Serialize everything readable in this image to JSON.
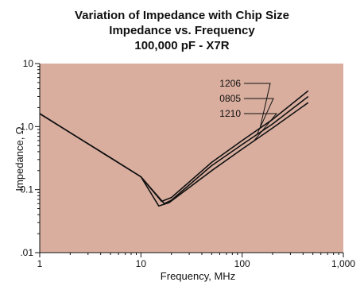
{
  "chart_data": {
    "type": "line",
    "title": [
      "Variation of Impedance with Chip Size",
      "Impedance vs. Frequency",
      "100,000 pF - X7R"
    ],
    "xlabel": "Frequency, MHz",
    "ylabel": "Impedance, Ω",
    "x_scale": "log",
    "y_scale": "log",
    "xlim": [
      1,
      1000
    ],
    "ylim": [
      0.01,
      10
    ],
    "x_ticks": [
      {
        "value": 1,
        "label": "1"
      },
      {
        "value": 10,
        "label": "10"
      },
      {
        "value": 100,
        "label": "100"
      },
      {
        "value": 1000,
        "label": "1,000"
      }
    ],
    "y_ticks": [
      {
        "value": 10,
        "label": "10"
      },
      {
        "value": 1,
        "label": "1.0"
      },
      {
        "value": 0.1,
        "label": "0.1"
      },
      {
        "value": 0.01,
        "label": ".01"
      }
    ],
    "plot_background": "#d9ae9f",
    "line_color": "#111111",
    "legend_placement": "top-right",
    "series": [
      {
        "name": "1206",
        "x": [
          1,
          2,
          5,
          10,
          16,
          20,
          50,
          100,
          200,
          450
        ],
        "y": [
          1.6,
          0.8,
          0.32,
          0.16,
          0.065,
          0.075,
          0.27,
          0.6,
          1.3,
          3.7
        ]
      },
      {
        "name": "0805",
        "x": [
          1,
          2,
          5,
          10,
          17,
          20,
          50,
          100,
          200,
          450
        ],
        "y": [
          1.6,
          0.8,
          0.32,
          0.16,
          0.06,
          0.068,
          0.24,
          0.52,
          1.1,
          3.0
        ]
      },
      {
        "name": "1210",
        "x": [
          1,
          2,
          5,
          10,
          15,
          19,
          50,
          100,
          200,
          450
        ],
        "y": [
          1.6,
          0.8,
          0.32,
          0.16,
          0.055,
          0.062,
          0.2,
          0.44,
          0.95,
          2.4
        ]
      }
    ]
  }
}
